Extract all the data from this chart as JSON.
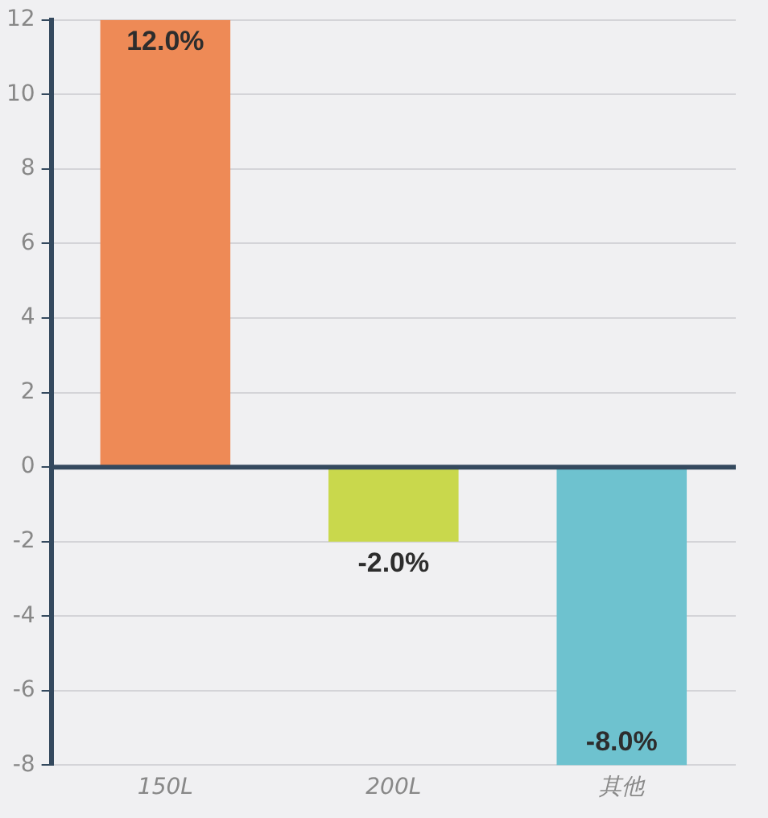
{
  "chart_data": {
    "type": "bar",
    "categories": [
      "150L",
      "200L",
      "其他"
    ],
    "values": [
      12,
      -2,
      -8
    ],
    "colors": [
      "#ee8a56",
      "#c9d84c",
      "#6ec2cf"
    ],
    "value_labels": [
      "12.0%",
      "-2.0%",
      "-8.0%"
    ],
    "ylim": [
      -8,
      12
    ],
    "yticks": [
      -8,
      -6,
      -4,
      -2,
      0,
      2,
      4,
      6,
      8,
      10,
      12
    ],
    "grid": "y"
  }
}
